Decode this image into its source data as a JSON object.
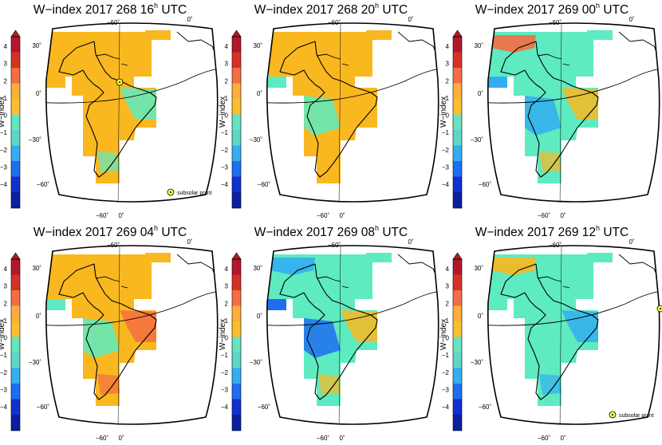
{
  "colorbar": {
    "label": "W−index",
    "ticks": [
      "4",
      "3",
      "2",
      "1",
      "0",
      "−1",
      "−2",
      "−3",
      "−4"
    ],
    "colors": [
      "#b2182b",
      "#d73027",
      "#f46d43",
      "#fdae3d",
      "#f9bf2c",
      "#66e3c0",
      "#5ed6c8",
      "#33aef0",
      "#1e6ef0",
      "#1030d0",
      "#0a20a0"
    ]
  },
  "panels": [
    {
      "title": "W−index 2017 268 16",
      "sup": "h",
      "suffix": " UTC",
      "legend": "subsolar point",
      "sun": "inside",
      "palette": [
        "#f9b81f",
        "#f9b81f",
        "#5eebc1",
        "#f9b81f"
      ]
    },
    {
      "title": "W−index 2017 268 20",
      "sup": "h",
      "suffix": " UTC",
      "legend": "",
      "sun": "none",
      "palette": [
        "#f9b81f",
        "#5eebc1",
        "#f9b81f",
        "#f9b81f"
      ]
    },
    {
      "title": "W−index 2017 269 00",
      "sup": "h",
      "suffix": " UTC",
      "legend": "",
      "sun": "none",
      "palette": [
        "#5eebc1",
        "#33aef0",
        "#f9b81f",
        "#f46d43"
      ]
    },
    {
      "title": "W−index 2017 269 04",
      "sup": "h",
      "suffix": " UTC",
      "legend": "",
      "sun": "none",
      "palette": [
        "#f9b81f",
        "#5eebc1",
        "#f46d43",
        "#f9b81f"
      ]
    },
    {
      "title": "W−index 2017 269 08",
      "sup": "h",
      "suffix": " UTC",
      "legend": "",
      "sun": "none",
      "palette": [
        "#5eebc1",
        "#1e6ef0",
        "#f9b81f",
        "#33aef0"
      ]
    },
    {
      "title": "W−index 2017 269 12",
      "sup": "h",
      "suffix": " UTC",
      "legend": "subsolar point",
      "sun": "edge",
      "palette": [
        "#5eebc1",
        "#5eebc1",
        "#33aef0",
        "#f9b81f"
      ]
    }
  ],
  "graticule": {
    "lon_top_west": "−60˚",
    "lon_top_east": "0˚",
    "lon_bottom_west": "−60˚",
    "lon_bottom_east": "0˚",
    "lat_labels": [
      "30˚",
      "0˚",
      "−30˚",
      "−60˚"
    ]
  }
}
